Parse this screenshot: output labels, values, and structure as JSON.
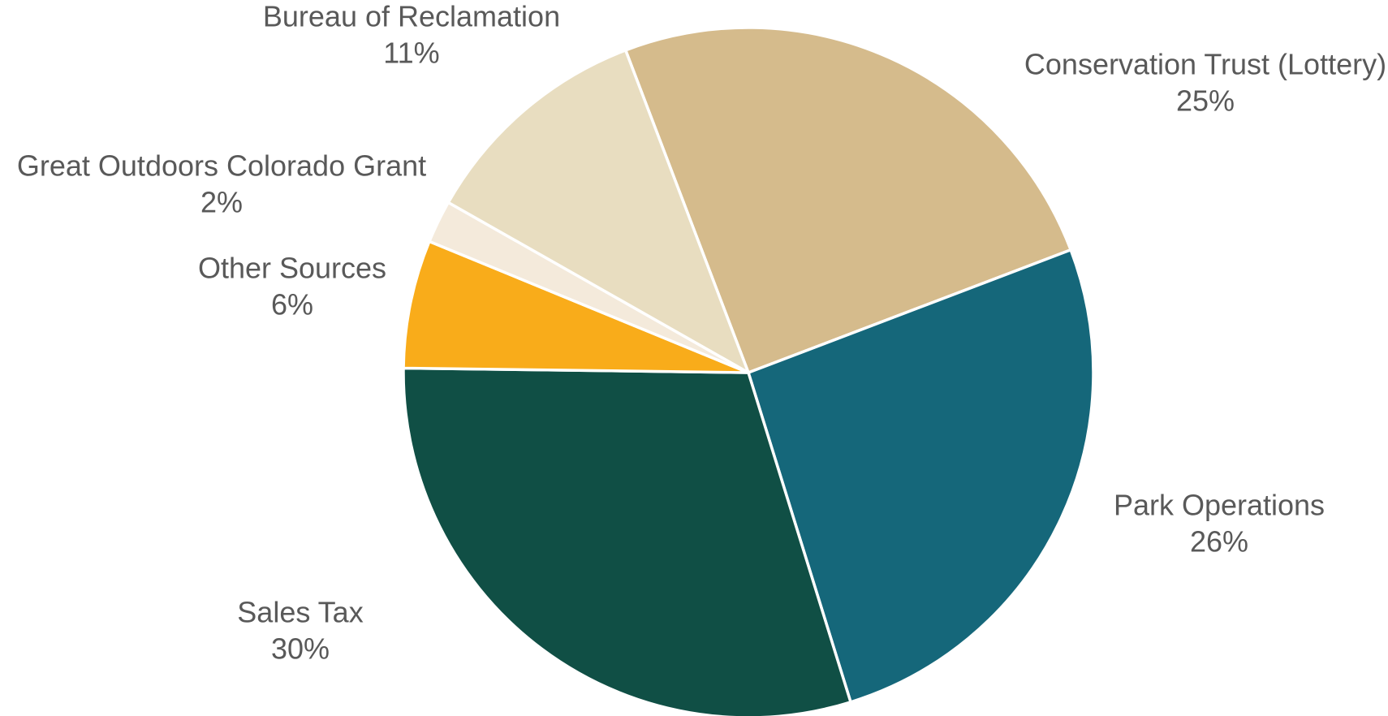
{
  "chart_data": {
    "type": "pie",
    "title": "",
    "slices": [
      {
        "label": "Conservation Trust (Lottery)",
        "value": 25,
        "value_label": "25%",
        "color": "#D5BB8C"
      },
      {
        "label": "Park Operations",
        "value": 26,
        "value_label": "26%",
        "color": "#15677A"
      },
      {
        "label": "Sales Tax",
        "value": 30,
        "value_label": "30%",
        "color": "#104F45"
      },
      {
        "label": "Other Sources",
        "value": 6,
        "value_label": "6%",
        "color": "#F9AC1A"
      },
      {
        "label": "Great Outdoors Colorado Grant",
        "value": 2,
        "value_label": "2%",
        "color": "#F4EADB"
      },
      {
        "label": "Bureau of Reclamation",
        "value": 11,
        "value_label": "11%",
        "color": "#E8DDC0"
      }
    ],
    "legend": "none",
    "label_color": "#595959",
    "slice_border_color": "#FFFFFF"
  }
}
